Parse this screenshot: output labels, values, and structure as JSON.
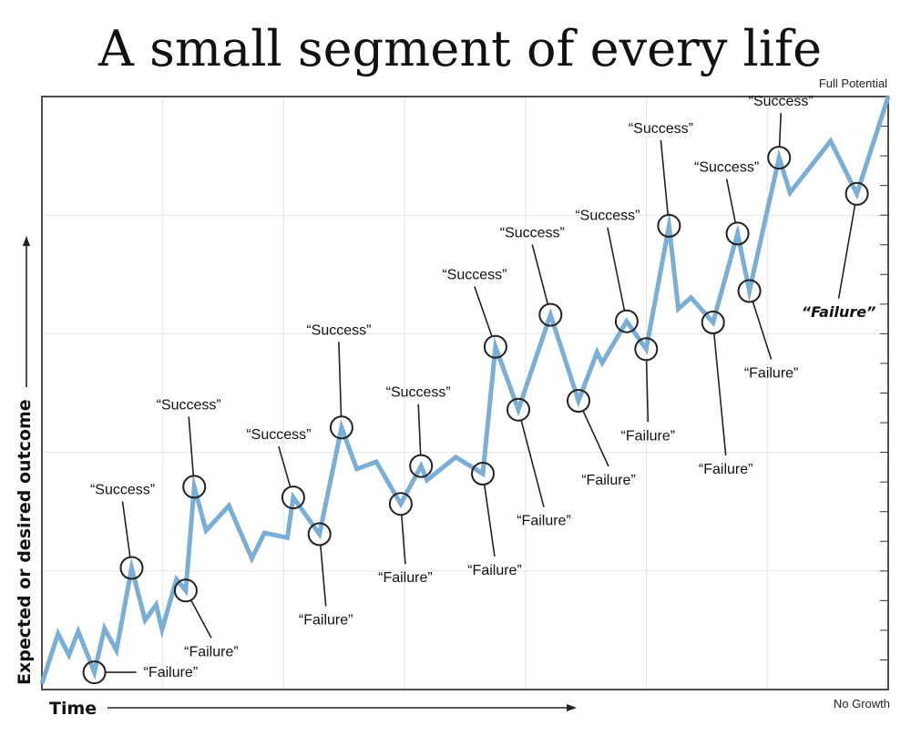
{
  "chart_data": {
    "type": "line",
    "title": "A small segment of every life",
    "xlabel": "Time",
    "ylabel": "Expected or desired outcome",
    "y_top_label": "Full Potential",
    "y_bottom_label": "No Growth",
    "xlim": [
      0,
      100
    ],
    "ylim": [
      0,
      100
    ],
    "grid": true,
    "line_color": "#7aaed6",
    "series": [
      {
        "name": "outcome",
        "points": [
          [
            0,
            1
          ],
          [
            1.9,
            9.4
          ],
          [
            3.2,
            5.8
          ],
          [
            4.3,
            9.8
          ],
          [
            6.2,
            2.9
          ],
          [
            7.4,
            10.3
          ],
          [
            8.8,
            6.6
          ],
          [
            10.6,
            20.5
          ],
          [
            12.2,
            11.7
          ],
          [
            13.5,
            14.3
          ],
          [
            14.2,
            10.1
          ],
          [
            15.9,
            18.6
          ],
          [
            17,
            16.7
          ],
          [
            18,
            34.2
          ],
          [
            19.4,
            26.8
          ],
          [
            22.1,
            31
          ],
          [
            24.8,
            22.1
          ],
          [
            26.3,
            26.4
          ],
          [
            29,
            25.6
          ],
          [
            29.7,
            32.4
          ],
          [
            32.8,
            26.2
          ],
          [
            35.4,
            44.2
          ],
          [
            37.2,
            37.2
          ],
          [
            39.5,
            38.4
          ],
          [
            42.4,
            31.3
          ],
          [
            44.8,
            37.7
          ],
          [
            45.5,
            35.3
          ],
          [
            48.9,
            39.2
          ],
          [
            52.1,
            36.4
          ],
          [
            53.6,
            57.8
          ],
          [
            56.3,
            47.2
          ],
          [
            60.1,
            63.2
          ],
          [
            63.4,
            48.7
          ],
          [
            65.6,
            56.9
          ],
          [
            66.2,
            55.1
          ],
          [
            69.1,
            62.1
          ],
          [
            71.4,
            57.4
          ],
          [
            74.1,
            78.2
          ],
          [
            75.2,
            64.2
          ],
          [
            76.7,
            66.1
          ],
          [
            79.3,
            61.9
          ],
          [
            82.2,
            76.9
          ],
          [
            83.6,
            67.2
          ],
          [
            87.1,
            89.7
          ],
          [
            88.4,
            83.8
          ],
          [
            93.2,
            92.5
          ],
          [
            96.3,
            83.6
          ],
          [
            100,
            100
          ]
        ]
      }
    ],
    "annotations": [
      {
        "label": "“Failure”",
        "type": "failure",
        "x": 6.2,
        "y": 2.9,
        "bold": false
      },
      {
        "label": "“Success”",
        "type": "success",
        "x": 10.6,
        "y": 20.5,
        "bold": false
      },
      {
        "label": "“Failure”",
        "type": "failure",
        "x": 17,
        "y": 16.7,
        "bold": false
      },
      {
        "label": "“Success”",
        "type": "success",
        "x": 18,
        "y": 34.2,
        "bold": false
      },
      {
        "label": "“Success”",
        "type": "success",
        "x": 29.7,
        "y": 32.4,
        "bold": false
      },
      {
        "label": "“Failure”",
        "type": "failure",
        "x": 32.8,
        "y": 26.2,
        "bold": false
      },
      {
        "label": "“Success”",
        "type": "success",
        "x": 35.4,
        "y": 44.2,
        "bold": false
      },
      {
        "label": "“Failure”",
        "type": "failure",
        "x": 42.4,
        "y": 31.3,
        "bold": false
      },
      {
        "label": "“Success”",
        "type": "success",
        "x": 44.8,
        "y": 37.7,
        "bold": false
      },
      {
        "label": "“Failure”",
        "type": "failure",
        "x": 52.1,
        "y": 36.4,
        "bold": false
      },
      {
        "label": "“Success”",
        "type": "success",
        "x": 53.6,
        "y": 57.8,
        "bold": false
      },
      {
        "label": "“Failure”",
        "type": "failure",
        "x": 56.3,
        "y": 47.2,
        "bold": false
      },
      {
        "label": "“Success”",
        "type": "success",
        "x": 60.1,
        "y": 63.2,
        "bold": false
      },
      {
        "label": "“Failure”",
        "type": "failure",
        "x": 63.4,
        "y": 48.7,
        "bold": false
      },
      {
        "label": "“Success”",
        "type": "success",
        "x": 69.1,
        "y": 62.1,
        "bold": false
      },
      {
        "label": "“Failure”",
        "type": "failure",
        "x": 71.4,
        "y": 57.4,
        "bold": false
      },
      {
        "label": "“Success”",
        "type": "success",
        "x": 74.1,
        "y": 78.2,
        "bold": false
      },
      {
        "label": "“Failure”",
        "type": "failure",
        "x": 79.3,
        "y": 61.9,
        "bold": false
      },
      {
        "label": "“Success”",
        "type": "success",
        "x": 82.2,
        "y": 76.9,
        "bold": false
      },
      {
        "label": "“Failure”",
        "type": "failure",
        "x": 83.6,
        "y": 67.2,
        "bold": false
      },
      {
        "label": "“Success”",
        "type": "success",
        "x": 87.1,
        "y": 89.7,
        "bold": false
      },
      {
        "label": "“Failure”",
        "type": "failure",
        "x": 96.3,
        "y": 83.6,
        "bold": true
      }
    ]
  }
}
